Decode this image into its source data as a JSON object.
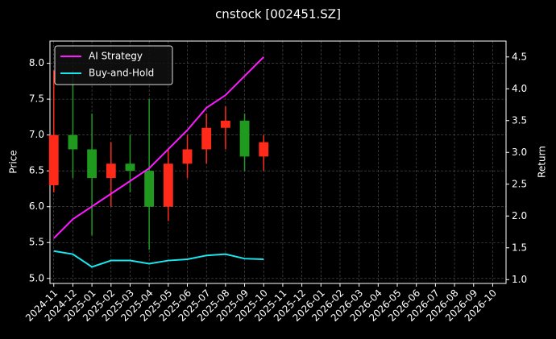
{
  "chart_data": {
    "type": "candlestick",
    "title": "cnstock [002451.SZ]",
    "ylabel": "Price",
    "y2label": "Return",
    "categories": [
      "2024-11",
      "2024-12",
      "2025-01",
      "2025-02",
      "2025-03",
      "2025-04",
      "2025-05",
      "2025-06",
      "2025-07",
      "2025-08",
      "2025-09",
      "2025-10",
      "2025-11",
      "2025-12",
      "2026-01",
      "2026-02",
      "2026-03",
      "2026-04",
      "2026-05",
      "2026-06",
      "2026-07",
      "2026-08",
      "2026-09",
      "2026-10"
    ],
    "open": [
      6.3,
      7.0,
      6.8,
      6.4,
      6.6,
      6.5,
      6.0,
      6.6,
      6.8,
      7.1,
      7.2,
      6.7,
      null,
      null,
      null,
      null,
      null,
      null,
      null,
      null,
      null,
      null,
      null,
      null
    ],
    "high": [
      7.9,
      7.9,
      7.3,
      6.9,
      7.0,
      7.5,
      6.8,
      7.0,
      7.3,
      7.4,
      7.3,
      7.0,
      null,
      null,
      null,
      null,
      null,
      null,
      null,
      null,
      null,
      null,
      null,
      null
    ],
    "low": [
      6.2,
      6.4,
      5.6,
      6.0,
      6.2,
      5.4,
      5.8,
      6.4,
      6.6,
      6.8,
      6.5,
      6.5,
      null,
      null,
      null,
      null,
      null,
      null,
      null,
      null,
      null,
      null,
      null,
      null
    ],
    "close": [
      7.0,
      6.8,
      6.4,
      6.6,
      6.5,
      6.0,
      6.6,
      6.8,
      7.1,
      7.2,
      6.7,
      6.9,
      null,
      null,
      null,
      null,
      null,
      null,
      null,
      null,
      null,
      null,
      null,
      null
    ],
    "up_color": "#ff2a1a",
    "down_color": "#1f9a1f",
    "series": [
      {
        "name": "AI Strategy",
        "color": "#ff1aff",
        "axis": "y2",
        "values": [
          1.65,
          1.95,
          2.15,
          2.35,
          2.55,
          2.75,
          3.05,
          3.35,
          3.7,
          3.9,
          4.2,
          4.5,
          null,
          null,
          null,
          null,
          null,
          null,
          null,
          null,
          null,
          null,
          null,
          null
        ]
      },
      {
        "name": "Buy-and-Hold",
        "color": "#1ae6f0",
        "axis": "y2",
        "values": [
          1.45,
          1.4,
          1.2,
          1.3,
          1.3,
          1.25,
          1.3,
          1.32,
          1.38,
          1.4,
          1.33,
          1.32,
          null,
          null,
          null,
          null,
          null,
          null,
          null,
          null,
          null,
          null,
          null,
          null
        ]
      }
    ],
    "ylim": [
      4.93,
      8.31
    ],
    "yticks": [
      {
        "value": 5,
        "label": "5.0"
      },
      {
        "value": 5.5,
        "label": "5.5"
      },
      {
        "value": 6,
        "label": "6.0"
      },
      {
        "value": 6.5,
        "label": "6.5"
      },
      {
        "value": 7,
        "label": "7.0"
      },
      {
        "value": 7.5,
        "label": "7.5"
      },
      {
        "value": 8,
        "label": "8.0"
      }
    ],
    "y2lim": [
      0.94,
      4.75
    ],
    "y2ticks": [
      {
        "value": 1,
        "label": "1.0"
      },
      {
        "value": 1.5,
        "label": "1.5"
      },
      {
        "value": 2,
        "label": "2.0"
      },
      {
        "value": 2.5,
        "label": "2.5"
      },
      {
        "value": 3,
        "label": "3.0"
      },
      {
        "value": 3.5,
        "label": "3.5"
      },
      {
        "value": 4,
        "label": "4.0"
      },
      {
        "value": 4.5,
        "label": "4.5"
      }
    ],
    "grid": true,
    "legend": "upper left"
  }
}
